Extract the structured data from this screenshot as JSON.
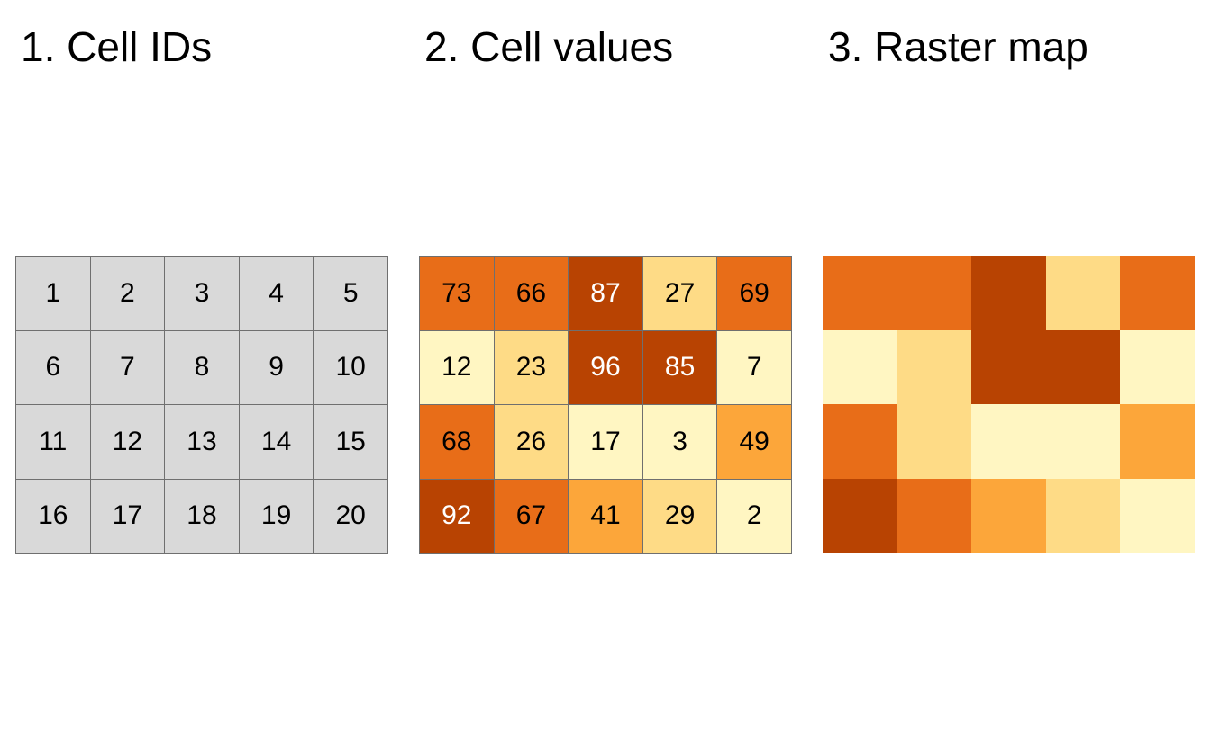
{
  "titles": {
    "cell_ids": "1. Cell IDs",
    "cell_values": "2. Cell values",
    "raster_map": "3. Raster map"
  },
  "grid": {
    "rows": 4,
    "cols": 5,
    "ids": [
      1,
      2,
      3,
      4,
      5,
      6,
      7,
      8,
      9,
      10,
      11,
      12,
      13,
      14,
      15,
      16,
      17,
      18,
      19,
      20
    ],
    "values": [
      73,
      66,
      87,
      27,
      69,
      12,
      23,
      96,
      85,
      7,
      68,
      26,
      17,
      3,
      49,
      92,
      67,
      41,
      29,
      2
    ]
  },
  "colors": {
    "id_cell_fill": "#d9d9d9",
    "cell_border": "#6f6f6f",
    "palette": [
      {
        "max": 20,
        "color": "#fff6c2"
      },
      {
        "max": 40,
        "color": "#fedb86"
      },
      {
        "max": 60,
        "color": "#fca63a"
      },
      {
        "max": 80,
        "color": "#e86d18"
      },
      {
        "max": 100,
        "color": "#b84302"
      }
    ],
    "light_text_min_value": 80
  }
}
